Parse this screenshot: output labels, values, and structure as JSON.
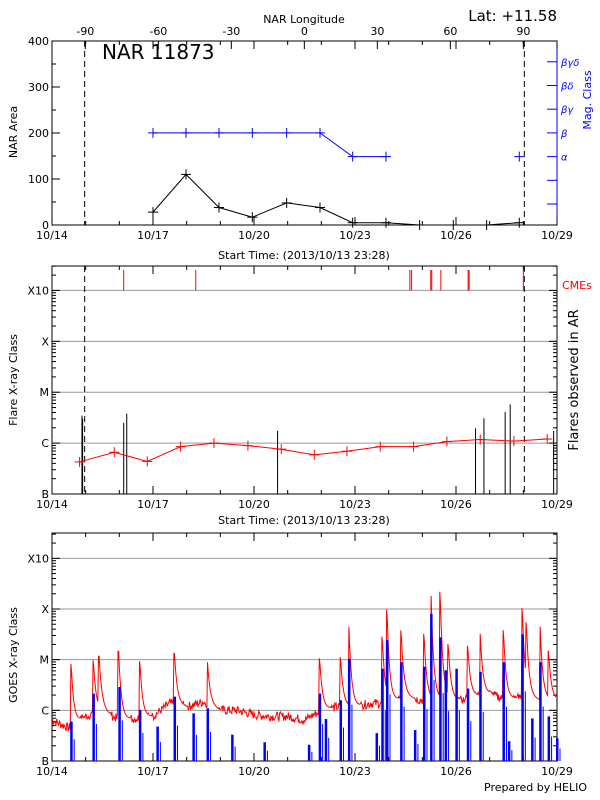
{
  "header": {
    "region_title": "NAR 11873",
    "latitude": "Lat: +11.58",
    "credit": "Prepared by HELIO"
  },
  "colors": {
    "axis": "#000000",
    "mag": "#0000ff",
    "flare_line": "#ff0000",
    "cme": "#ff0000",
    "goes_long": "#ff0000",
    "goes_short": "#0000ff",
    "grid": "#999999"
  },
  "x_axis": {
    "unit": "days after 10/14 00:00",
    "range_days": [
      0,
      15
    ],
    "tick_labels": [
      "10/14",
      "10/17",
      "10/20",
      "10/23",
      "10/26",
      "10/29"
    ],
    "tick_days": [
      0,
      3,
      6,
      9,
      12,
      15
    ],
    "start_time_label": "Start Time: (2013/10/13 23:28)"
  },
  "chart_data": [
    {
      "type": "line",
      "title": "NAR 11873",
      "ylabel": "NAR Area",
      "ylim": [
        0,
        400
      ],
      "yticks": [
        0,
        100,
        200,
        300,
        400
      ],
      "top_axis": {
        "label": "NAR Longitude",
        "ticks": [
          -90,
          -60,
          -30,
          0,
          30,
          60,
          90
        ],
        "lon_minus90_day": 0.99,
        "lon_plus90_day": 14.0
      },
      "limb_lines_days": [
        0.97,
        14.03
      ],
      "series": [
        {
          "x_days": [
            3.0,
            3.98,
            4.96,
            5.95,
            6.97,
            7.96,
            8.93,
            9.92,
            10.92,
            11.92,
            12.91,
            13.88
          ],
          "values": [
            28,
            110,
            38,
            17,
            48,
            38,
            5,
            5,
            0,
            0,
            0,
            5
          ]
        }
      ],
      "mag_axis": {
        "label": "Mag. Class",
        "levels": [
          "",
          "",
          "α",
          "β",
          "βγ",
          "βδ",
          "βγδ"
        ],
        "segments": [
          {
            "x_days": [
              3.0,
              3.98,
              4.96,
              5.95,
              6.97,
              7.96,
              8.93,
              9.92
            ],
            "classes": [
              "β",
              "β",
              "β",
              "β",
              "β",
              "β",
              "α",
              "α"
            ]
          },
          {
            "x_days": [
              13.88
            ],
            "classes": [
              "α"
            ]
          }
        ]
      }
    },
    {
      "type": "line",
      "ylabel": "Flare X-ray Class",
      "right_label": "Flares observed in AR",
      "yscale": "log",
      "ylim_log10_flux": [
        -7,
        -2.52
      ],
      "ytick_labels": [
        "B",
        "C",
        "M",
        "X",
        "X10"
      ],
      "ytick_log10_flux": [
        -7,
        -6,
        -5,
        -4,
        -3
      ],
      "grid": true,
      "limb_lines_days": [
        0.97,
        14.03
      ],
      "average_class": {
        "x_days": [
          0.82,
          1.85,
          2.83,
          3.82,
          4.81,
          5.82,
          6.81,
          7.79,
          8.76,
          9.75,
          10.74,
          11.73,
          12.72,
          13.72,
          14.71
        ],
        "log10_flux": [
          -6.37,
          -6.18,
          -6.36,
          -6.07,
          -6.0,
          -6.05,
          -6.12,
          -6.23,
          -6.16,
          -6.07,
          -6.07,
          -5.97,
          -5.93,
          -5.96,
          -5.92
        ]
      },
      "flares": {
        "x_days": [
          0.89,
          0.91,
          2.13,
          2.22,
          6.7,
          12.58,
          12.83,
          13.46,
          13.61,
          14.9
        ],
        "log10_flux": [
          -5.46,
          -5.52,
          -5.6,
          -5.42,
          -5.76,
          -5.71,
          -5.51,
          -5.39,
          -5.24,
          -5.76
        ]
      },
      "cmes": {
        "label": "CMEs",
        "x_days": [
          2.13,
          4.27,
          10.63,
          10.68,
          11.25,
          11.28,
          11.55,
          12.36,
          12.39,
          14.0
        ]
      }
    },
    {
      "type": "line",
      "ylabel": "GOES X-ray Class",
      "yscale": "log",
      "ylim_log10_flux": [
        -7,
        -2.5
      ],
      "ytick_labels": [
        "B",
        "C",
        "M",
        "X",
        "X10"
      ],
      "ytick_log10_flux": [
        -7,
        -6,
        -5,
        -4,
        -3
      ],
      "grid": true,
      "long_channel": {
        "baseline_step_days": 0.5,
        "baseline_log10_flux": [
          -6.19,
          -6.35,
          -6.12,
          -6.0,
          -6.19,
          -6.16,
          -6.12,
          -5.86,
          -5.93,
          -5.83,
          -6.0,
          -6.0,
          -6.09,
          -6.12,
          -6.12,
          -6.19,
          -6.0,
          -5.93,
          -5.93,
          -5.86,
          -5.86,
          -5.73,
          -5.8,
          -5.8,
          -5.8,
          -5.73,
          -5.67,
          -5.8,
          -5.73,
          -5.8,
          -5.8
        ],
        "peaks_days": [
          0.57,
          1.23,
          1.4,
          1.98,
          2.61,
          3.64,
          4.62,
          7.95,
          8.57,
          8.82,
          9.81,
          9.95,
          10.37,
          11.05,
          11.26,
          11.53,
          11.77,
          12.35,
          12.72,
          13.41,
          13.97,
          14.09,
          14.5,
          14.75
        ],
        "peaks_log10_flux": [
          -5.08,
          -5.01,
          -4.93,
          -4.84,
          -5.03,
          -4.88,
          -5.05,
          -4.97,
          -4.95,
          -4.35,
          -4.54,
          -4.01,
          -4.42,
          -4.49,
          -3.74,
          -3.66,
          -4.69,
          -4.72,
          -4.49,
          -4.42,
          -3.98,
          -4.26,
          -4.35,
          -4.82
        ]
      },
      "short_channel": {
        "peaks_days": [
          0.57,
          1.23,
          2.0,
          2.61,
          3.13,
          3.64,
          4.2,
          4.62,
          5.35,
          6.31,
          7.63,
          7.95,
          8.13,
          8.57,
          8.82,
          9.64,
          9.81,
          9.95,
          10.37,
          10.78,
          11.05,
          11.26,
          11.53,
          11.69,
          12.01,
          12.35,
          12.72,
          13.41,
          13.57,
          13.97,
          14.26,
          14.5,
          14.75,
          15.0
        ],
        "peaks_log10_flux": [
          -6.22,
          -5.67,
          -5.54,
          -5.99,
          -6.32,
          -5.73,
          -6.06,
          -5.96,
          -6.48,
          -6.63,
          -6.68,
          -5.67,
          -6.17,
          -5.8,
          -4.98,
          -6.45,
          -5.18,
          -4.61,
          -5.05,
          -6.39,
          -5.14,
          -4.1,
          -4.56,
          -5.21,
          -5.18,
          -5.57,
          -5.24,
          -5.05,
          -6.61,
          -4.5,
          -6.16,
          -5.05,
          -6.12,
          -6.55
        ]
      }
    }
  ]
}
